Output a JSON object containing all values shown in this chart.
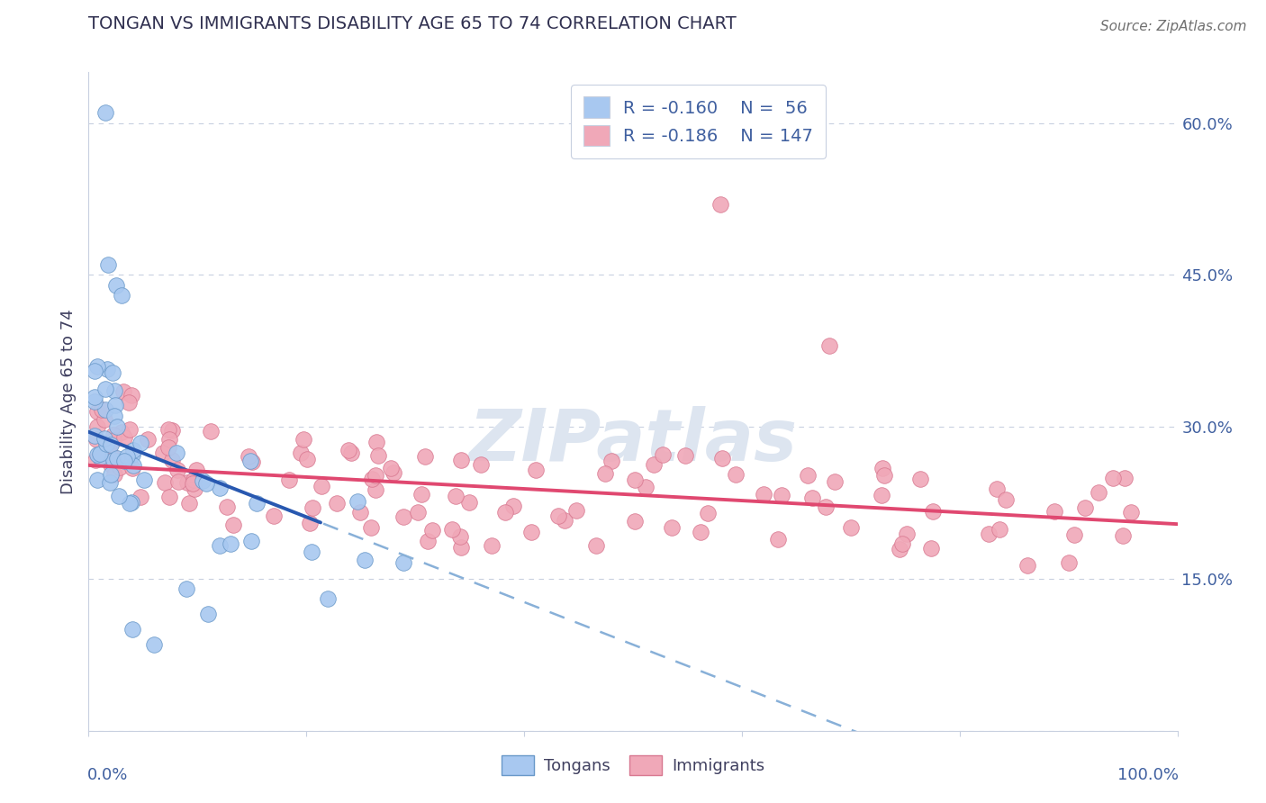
{
  "title": "TONGAN VS IMMIGRANTS DISABILITY AGE 65 TO 74 CORRELATION CHART",
  "source": "Source: ZipAtlas.com",
  "ylabel": "Disability Age 65 to 74",
  "legend_tongans": "Tongans",
  "legend_immigrants": "Immigrants",
  "r_tongan": "-0.160",
  "n_tongan": "56",
  "r_immigrant": "-0.186",
  "n_immigrant": "147",
  "yticks": [
    0.0,
    0.15,
    0.3,
    0.45,
    0.6
  ],
  "ytick_labels": [
    "",
    "15.0%",
    "30.0%",
    "45.0%",
    "60.0%"
  ],
  "xmin": 0.0,
  "xmax": 1.0,
  "ymin": 0.0,
  "ymax": 0.65,
  "tongan_color": "#a8c8f0",
  "tongan_edge": "#6898c8",
  "immigrant_color": "#f0a8b8",
  "immigrant_edge": "#d87890",
  "trend_tongan_solid_color": "#2858b0",
  "trend_tongan_dashed_color": "#88b0d8",
  "trend_immigrant_color": "#e04870",
  "watermark_text": "ZIPatlas",
  "watermark_color": "#dde5f0",
  "title_color": "#303050",
  "axis_label_color": "#4060a0",
  "text_color": "#404060",
  "grid_color": "#c8d0e0",
  "spine_color": "#c8d0e0",
  "source_color": "#707070",
  "legend_edge_color": "#c8d0e0",
  "tongan_seed": 12,
  "immigrant_seed": 7,
  "trend_tongan_intercept": 0.295,
  "trend_tongan_slope": -0.42,
  "trend_tongan_solid_xmax": 0.215,
  "trend_immigrant_intercept": 0.262,
  "trend_immigrant_slope": -0.058
}
